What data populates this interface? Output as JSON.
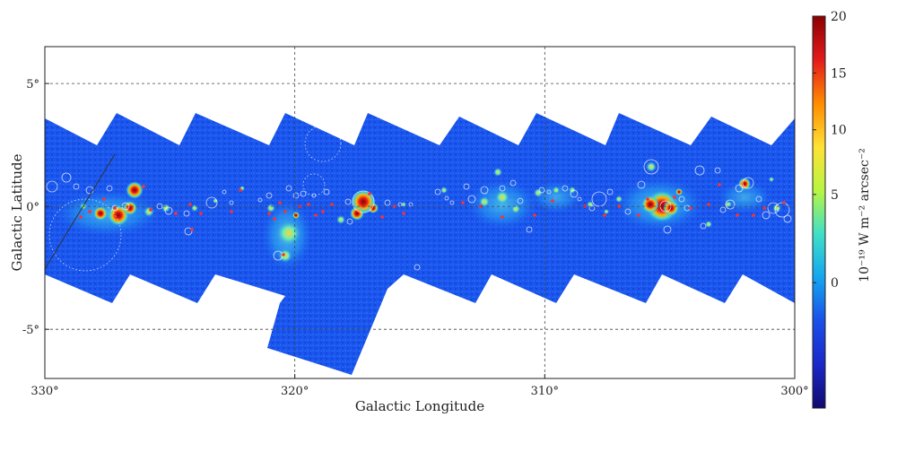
{
  "map": {
    "xlabel": "Galactic Longitude",
    "ylabel": "Galactic Latitude",
    "x_ticks": [
      {
        "value": 330,
        "label": "330°"
      },
      {
        "value": 320,
        "label": "320°"
      },
      {
        "value": 310,
        "label": "310°"
      },
      {
        "value": 300,
        "label": "300°"
      }
    ],
    "y_ticks": [
      {
        "value": 5,
        "label": "5°"
      },
      {
        "value": 0,
        "label": "0°"
      },
      {
        "value": -5,
        "label": "-5°"
      }
    ],
    "xlim": [
      330,
      300
    ],
    "ylim": [
      -7,
      6.5
    ],
    "grid": true,
    "colors": {
      "background_field": "#1a4fe8",
      "emission_mid": "#28d0d0",
      "emission_high": "#f2d43a",
      "emission_peak": "#b30000",
      "source_circles": "#ffffff",
      "source_markers": "#ff3030"
    }
  },
  "colorbar": {
    "label": "10⁻¹⁹ W m⁻² arcsec⁻²",
    "ticks": [
      {
        "value": 20,
        "label": "20"
      },
      {
        "value": 15,
        "label": "15"
      },
      {
        "value": 10,
        "label": "10"
      },
      {
        "value": 5,
        "label": "5"
      },
      {
        "value": 0,
        "label": "0"
      }
    ],
    "colors": [
      "#8b0000",
      "#e31a1c",
      "#ff8c00",
      "#ffe135",
      "#b9f542",
      "#3fe0c7",
      "#13a6f0",
      "#1a4fe8",
      "#1b28c8",
      "#120a6e"
    ]
  }
}
